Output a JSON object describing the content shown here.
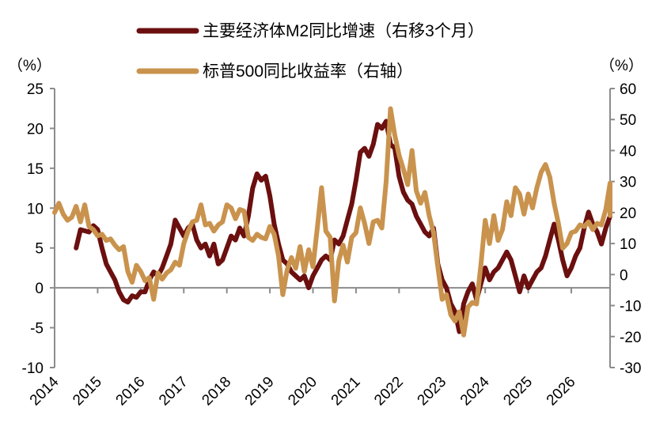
{
  "chart_data": {
    "type": "line",
    "legend_placement": "top-center",
    "left_axis": {
      "unit_label": "（%）",
      "ylim": [
        -10,
        25
      ],
      "ticks": [
        25,
        20,
        15,
        10,
        5,
        0,
        -5,
        -10
      ],
      "tick_labels": [
        "25",
        "20",
        "15",
        "10",
        "5",
        "0",
        "-5",
        "-10"
      ]
    },
    "right_axis": {
      "unit_label": "（%）",
      "ylim": [
        -30,
        60
      ],
      "ticks": [
        60,
        50,
        40,
        30,
        20,
        10,
        0,
        -10,
        -20,
        -30
      ],
      "tick_labels": [
        "60",
        "50",
        "40",
        "30",
        "20",
        "10",
        "0",
        "-10",
        "-20",
        "-30"
      ]
    },
    "x_axis": {
      "xlim": [
        2014,
        2026.9
      ],
      "ticks": [
        2014,
        2015,
        2016,
        2017,
        2018,
        2019,
        2020,
        2021,
        2022,
        2023,
        2024,
        2025,
        2026
      ],
      "tick_labels": [
        "2014",
        "2015",
        "2016",
        "2017",
        "2018",
        "2019",
        "2020",
        "2021",
        "2022",
        "2023",
        "2024",
        "2025",
        "2026"
      ]
    },
    "grid": false,
    "zero_line": true,
    "series": [
      {
        "name": "主要经济体M2同比增速（右移3个月）",
        "axis": "left",
        "color": "#6b0f0f",
        "points": [
          [
            2014.5,
            5.0
          ],
          [
            2014.6,
            7.3
          ],
          [
            2014.8,
            7.0
          ],
          [
            2014.9,
            7.8
          ],
          [
            2015.0,
            7.3
          ],
          [
            2015.1,
            5.0
          ],
          [
            2015.2,
            3.0
          ],
          [
            2015.3,
            2.0
          ],
          [
            2015.4,
            1.0
          ],
          [
            2015.5,
            -0.5
          ],
          [
            2015.6,
            -1.5
          ],
          [
            2015.7,
            -1.8
          ],
          [
            2015.8,
            -1.0
          ],
          [
            2015.9,
            -1.2
          ],
          [
            2016.0,
            -0.5
          ],
          [
            2016.1,
            -0.5
          ],
          [
            2016.2,
            1.0
          ],
          [
            2016.3,
            2.0
          ],
          [
            2016.4,
            1.5
          ],
          [
            2016.5,
            2.5
          ],
          [
            2016.6,
            4.0
          ],
          [
            2016.7,
            5.5
          ],
          [
            2016.8,
            8.5
          ],
          [
            2016.9,
            7.5
          ],
          [
            2017.0,
            6.5
          ],
          [
            2017.1,
            7.5
          ],
          [
            2017.2,
            8.0
          ],
          [
            2017.3,
            6.0
          ],
          [
            2017.4,
            5.0
          ],
          [
            2017.5,
            5.5
          ],
          [
            2017.6,
            4.0
          ],
          [
            2017.7,
            5.5
          ],
          [
            2017.8,
            3.0
          ],
          [
            2017.9,
            3.5
          ],
          [
            2018.0,
            5.0
          ],
          [
            2018.1,
            6.5
          ],
          [
            2018.2,
            6.0
          ],
          [
            2018.3,
            7.5
          ],
          [
            2018.4,
            6.5
          ],
          [
            2018.5,
            9.0
          ],
          [
            2018.6,
            12.5
          ],
          [
            2018.7,
            14.3
          ],
          [
            2018.8,
            13.5
          ],
          [
            2018.9,
            14.0
          ],
          [
            2019.0,
            11.5
          ],
          [
            2019.1,
            8.0
          ],
          [
            2019.2,
            5.5
          ],
          [
            2019.3,
            3.5
          ],
          [
            2019.4,
            3.0
          ],
          [
            2019.5,
            2.0
          ],
          [
            2019.6,
            1.5
          ],
          [
            2019.7,
            1.0
          ],
          [
            2019.8,
            1.5
          ],
          [
            2019.9,
            0.0
          ],
          [
            2020.0,
            1.5
          ],
          [
            2020.1,
            2.5
          ],
          [
            2020.2,
            3.5
          ],
          [
            2020.3,
            4.0
          ],
          [
            2020.4,
            3.5
          ],
          [
            2020.5,
            6.0
          ],
          [
            2020.6,
            5.5
          ],
          [
            2020.7,
            6.5
          ],
          [
            2020.8,
            8.5
          ],
          [
            2020.9,
            10.5
          ],
          [
            2021.0,
            13.5
          ],
          [
            2021.1,
            17.0
          ],
          [
            2021.2,
            17.5
          ],
          [
            2021.3,
            16.5
          ],
          [
            2021.4,
            18.0
          ],
          [
            2021.5,
            20.5
          ],
          [
            2021.6,
            20.0
          ],
          [
            2021.7,
            20.9
          ],
          [
            2021.8,
            18.0
          ],
          [
            2021.9,
            17.5
          ],
          [
            2022.0,
            14.0
          ],
          [
            2022.1,
            12.0
          ],
          [
            2022.2,
            11.0
          ],
          [
            2022.3,
            10.5
          ],
          [
            2022.4,
            9.0
          ],
          [
            2022.5,
            8.0
          ],
          [
            2022.6,
            7.0
          ],
          [
            2022.7,
            6.5
          ],
          [
            2022.8,
            7.5
          ],
          [
            2022.9,
            3.0
          ],
          [
            2023.0,
            1.0
          ],
          [
            2023.1,
            0.0
          ],
          [
            2023.2,
            -2.0
          ],
          [
            2023.3,
            -3.0
          ],
          [
            2023.4,
            -5.5
          ],
          [
            2023.5,
            -2.0
          ],
          [
            2023.6,
            -0.5
          ],
          [
            2023.7,
            0.5
          ],
          [
            2023.8,
            -1.5
          ],
          [
            2023.9,
            0.5
          ],
          [
            2024.0,
            2.5
          ],
          [
            2024.1,
            1.0
          ],
          [
            2024.2,
            2.0
          ],
          [
            2024.3,
            2.5
          ],
          [
            2024.4,
            3.5
          ],
          [
            2024.5,
            4.5
          ],
          [
            2024.6,
            3.5
          ],
          [
            2024.7,
            1.5
          ],
          [
            2024.8,
            -0.5
          ],
          [
            2024.9,
            1.5
          ],
          [
            2025.0,
            0.0
          ],
          [
            2025.1,
            1.0
          ],
          [
            2025.2,
            2.0
          ],
          [
            2025.3,
            2.5
          ],
          [
            2025.4,
            4.0
          ],
          [
            2025.5,
            6.0
          ],
          [
            2025.6,
            8.0
          ],
          [
            2025.7,
            6.0
          ],
          [
            2025.8,
            3.5
          ],
          [
            2025.9,
            1.5
          ],
          [
            2026.0,
            2.5
          ],
          [
            2026.1,
            4.0
          ],
          [
            2026.2,
            5.0
          ],
          [
            2026.3,
            7.5
          ],
          [
            2026.4,
            9.5
          ],
          [
            2026.5,
            8.0
          ],
          [
            2026.6,
            7.0
          ],
          [
            2026.7,
            5.5
          ],
          [
            2026.8,
            7.5
          ],
          [
            2026.9,
            9.0
          ],
          [
            2027.0,
            11.0
          ],
          [
            2027.1,
            10.0
          ],
          [
            2027.2,
            9.5
          ]
        ]
      },
      {
        "name": "标普500同比收益率（右轴）",
        "axis": "right",
        "color": "#c9934e",
        "points": [
          [
            2014.0,
            20.0
          ],
          [
            2014.1,
            23.0
          ],
          [
            2014.2,
            19.5
          ],
          [
            2014.3,
            17.5
          ],
          [
            2014.4,
            18.5
          ],
          [
            2014.5,
            22.0
          ],
          [
            2014.6,
            17.0
          ],
          [
            2014.7,
            22.5
          ],
          [
            2014.8,
            15.5
          ],
          [
            2014.9,
            14.5
          ],
          [
            2015.0,
            12.5
          ],
          [
            2015.1,
            13.0
          ],
          [
            2015.2,
            11.0
          ],
          [
            2015.3,
            11.5
          ],
          [
            2015.4,
            9.5
          ],
          [
            2015.5,
            8.0
          ],
          [
            2015.6,
            9.0
          ],
          [
            2015.7,
            1.0
          ],
          [
            2015.8,
            -2.5
          ],
          [
            2015.9,
            3.0
          ],
          [
            2016.0,
            1.0
          ],
          [
            2016.1,
            -2.0
          ],
          [
            2016.2,
            -1.0
          ],
          [
            2016.3,
            -8.0
          ],
          [
            2016.4,
            0.5
          ],
          [
            2016.5,
            -1.5
          ],
          [
            2016.6,
            0.5
          ],
          [
            2016.7,
            1.5
          ],
          [
            2016.8,
            4.0
          ],
          [
            2016.9,
            3.0
          ],
          [
            2017.0,
            10.0
          ],
          [
            2017.1,
            14.0
          ],
          [
            2017.2,
            17.0
          ],
          [
            2017.3,
            17.5
          ],
          [
            2017.4,
            22.5
          ],
          [
            2017.5,
            16.0
          ],
          [
            2017.6,
            16.5
          ],
          [
            2017.7,
            14.0
          ],
          [
            2017.8,
            16.0
          ],
          [
            2017.9,
            17.0
          ],
          [
            2018.0,
            22.5
          ],
          [
            2018.1,
            21.5
          ],
          [
            2018.2,
            18.0
          ],
          [
            2018.3,
            21.0
          ],
          [
            2018.4,
            20.5
          ],
          [
            2018.5,
            12.0
          ],
          [
            2018.6,
            11.0
          ],
          [
            2018.7,
            13.0
          ],
          [
            2018.8,
            12.0
          ],
          [
            2018.9,
            11.5
          ],
          [
            2019.0,
            15.5
          ],
          [
            2019.1,
            13.0
          ],
          [
            2019.2,
            6.0
          ],
          [
            2019.3,
            -6.5
          ],
          [
            2019.4,
            1.5
          ],
          [
            2019.5,
            5.5
          ],
          [
            2019.6,
            2.0
          ],
          [
            2019.7,
            9.0
          ],
          [
            2019.8,
            1.0
          ],
          [
            2019.9,
            8.0
          ],
          [
            2020.0,
            2.5
          ],
          [
            2020.1,
            15.0
          ],
          [
            2020.2,
            28.0
          ],
          [
            2020.3,
            14.0
          ],
          [
            2020.4,
            12.0
          ],
          [
            2020.5,
            -8.5
          ],
          [
            2020.6,
            4.5
          ],
          [
            2020.7,
            9.5
          ],
          [
            2020.8,
            4.0
          ],
          [
            2020.9,
            12.0
          ],
          [
            2021.0,
            13.5
          ],
          [
            2021.1,
            21.5
          ],
          [
            2021.2,
            16.5
          ],
          [
            2021.3,
            10.0
          ],
          [
            2021.4,
            17.0
          ],
          [
            2021.5,
            17.5
          ],
          [
            2021.6,
            15.0
          ],
          [
            2021.7,
            30.0
          ],
          [
            2021.8,
            53.5
          ],
          [
            2021.9,
            45.0
          ],
          [
            2022.0,
            38.5
          ],
          [
            2022.1,
            34.0
          ],
          [
            2022.2,
            29.0
          ],
          [
            2022.3,
            40.0
          ],
          [
            2022.4,
            27.0
          ],
          [
            2022.5,
            23.0
          ],
          [
            2022.6,
            26.5
          ],
          [
            2022.7,
            19.0
          ],
          [
            2022.8,
            13.5
          ],
          [
            2022.9,
            2.5
          ],
          [
            2023.0,
            -8.0
          ],
          [
            2023.1,
            -6.5
          ],
          [
            2023.2,
            -13.0
          ],
          [
            2023.3,
            -15.0
          ],
          [
            2023.4,
            -12.0
          ],
          [
            2023.5,
            -19.5
          ],
          [
            2023.6,
            -10.5
          ],
          [
            2023.7,
            -9.0
          ],
          [
            2023.8,
            -9.5
          ],
          [
            2023.9,
            3.0
          ],
          [
            2024.0,
            17.5
          ],
          [
            2024.1,
            10.0
          ],
          [
            2024.2,
            19.0
          ],
          [
            2024.3,
            11.0
          ],
          [
            2024.4,
            14.5
          ],
          [
            2024.5,
            23.5
          ],
          [
            2024.6,
            19.0
          ],
          [
            2024.7,
            28.0
          ],
          [
            2024.8,
            26.0
          ],
          [
            2024.9,
            19.5
          ],
          [
            2025.0,
            26.0
          ],
          [
            2025.1,
            21.5
          ],
          [
            2025.2,
            28.0
          ],
          [
            2025.3,
            33.0
          ],
          [
            2025.4,
            35.5
          ],
          [
            2025.5,
            31.5
          ],
          [
            2025.6,
            23.0
          ],
          [
            2025.7,
            16.5
          ],
          [
            2025.8,
            8.5
          ],
          [
            2025.9,
            10.0
          ],
          [
            2026.0,
            13.5
          ],
          [
            2026.1,
            14.0
          ],
          [
            2026.2,
            16.0
          ],
          [
            2026.3,
            15.5
          ],
          [
            2026.4,
            17.0
          ],
          [
            2026.5,
            14.5
          ],
          [
            2026.6,
            16.5
          ],
          [
            2026.7,
            16.0
          ],
          [
            2026.8,
            21.0
          ],
          [
            2026.9,
            29.5
          ],
          [
            2027.0,
            27.5
          ],
          [
            2027.1,
            19.0
          ]
        ]
      }
    ]
  }
}
